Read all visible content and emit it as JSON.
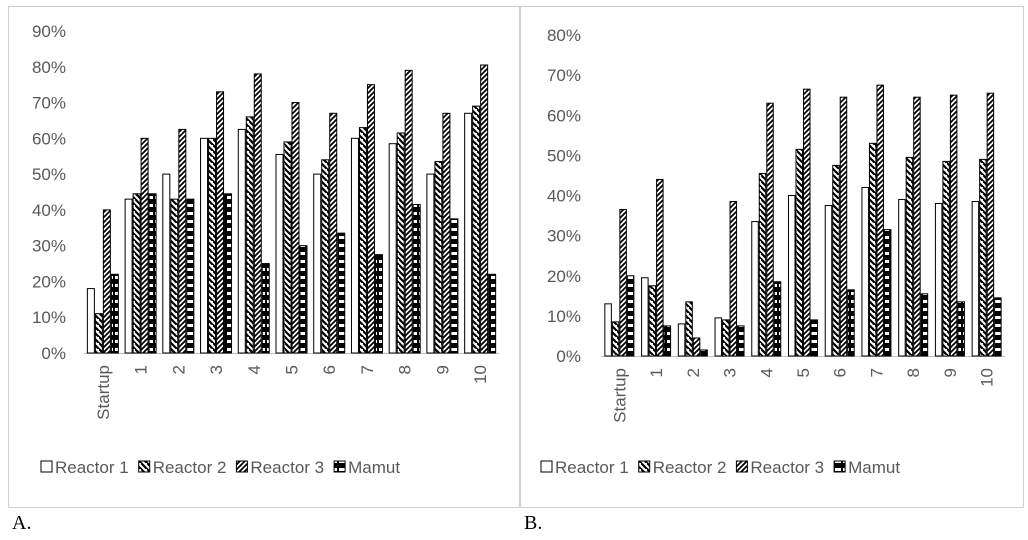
{
  "panels": {
    "a_label": "A.",
    "b_label": "B."
  },
  "chart_data": [
    {
      "type": "bar",
      "panel": "A.",
      "categories": [
        "Startup",
        "1",
        "2",
        "3",
        "4",
        "5",
        "6",
        "7",
        "8",
        "9",
        "10"
      ],
      "ylim": [
        0,
        0.9
      ],
      "yticks": [
        0,
        0.1,
        0.2,
        0.3,
        0.4,
        0.5,
        0.6,
        0.7,
        0.8,
        0.9
      ],
      "ytick_labels": [
        "0%",
        "10%",
        "20%",
        "30%",
        "40%",
        "50%",
        "60%",
        "70%",
        "80%",
        "90%"
      ],
      "legend_position": "bottom",
      "grid": false,
      "series": [
        {
          "name": "Reactor 1",
          "values": [
            0.18,
            0.43,
            0.5,
            0.6,
            0.625,
            0.555,
            0.5,
            0.6,
            0.585,
            0.5,
            0.67
          ]
        },
        {
          "name": "Reactor 2",
          "values": [
            0.11,
            0.445,
            0.43,
            0.6,
            0.66,
            0.59,
            0.54,
            0.63,
            0.615,
            0.535,
            0.69
          ]
        },
        {
          "name": "Reactor 3",
          "values": [
            0.4,
            0.6,
            0.625,
            0.73,
            0.78,
            0.7,
            0.67,
            0.75,
            0.79,
            0.67,
            0.805
          ]
        },
        {
          "name": "Mamut",
          "values": [
            0.22,
            0.445,
            0.43,
            0.445,
            0.25,
            0.3,
            0.335,
            0.275,
            0.415,
            0.375,
            0.22
          ]
        }
      ]
    },
    {
      "type": "bar",
      "panel": "B.",
      "categories": [
        "Startup",
        "1",
        "2",
        "3",
        "4",
        "5",
        "6",
        "7",
        "8",
        "9",
        "10"
      ],
      "ylim": [
        0,
        0.8
      ],
      "yticks": [
        0,
        0.1,
        0.2,
        0.3,
        0.4,
        0.5,
        0.6,
        0.7,
        0.8
      ],
      "ytick_labels": [
        "0%",
        "10%",
        "20%",
        "30%",
        "40%",
        "50%",
        "60%",
        "70%",
        "80%"
      ],
      "legend_position": "bottom",
      "grid": false,
      "series": [
        {
          "name": "Reactor 1",
          "values": [
            0.13,
            0.195,
            0.08,
            0.095,
            0.335,
            0.4,
            0.375,
            0.42,
            0.39,
            0.38,
            0.385
          ]
        },
        {
          "name": "Reactor 2",
          "values": [
            0.085,
            0.175,
            0.135,
            0.09,
            0.455,
            0.515,
            0.475,
            0.53,
            0.495,
            0.485,
            0.49
          ]
        },
        {
          "name": "Reactor 3",
          "values": [
            0.365,
            0.44,
            0.045,
            0.385,
            0.63,
            0.665,
            0.645,
            0.675,
            0.645,
            0.65,
            0.655
          ]
        },
        {
          "name": "Mamut",
          "values": [
            0.2,
            0.075,
            0.015,
            0.075,
            0.185,
            0.09,
            0.165,
            0.315,
            0.155,
            0.135,
            0.145
          ]
        }
      ]
    }
  ]
}
